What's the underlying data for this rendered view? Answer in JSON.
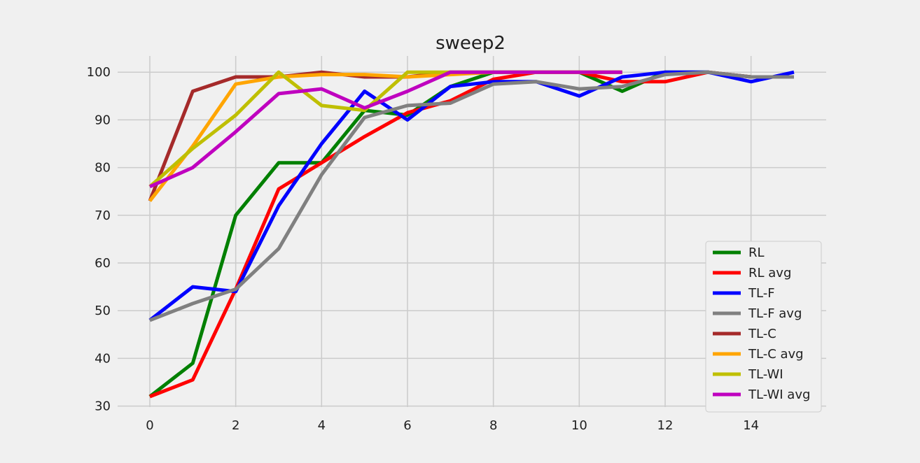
{
  "chart_data": {
    "type": "line",
    "title": "sweep2",
    "xlabel": "",
    "ylabel": "",
    "xlim": [
      -0.75,
      15.75
    ],
    "ylim": [
      29.8,
      103.4
    ],
    "x_ticks": [
      0,
      2,
      4,
      6,
      8,
      10,
      12,
      14
    ],
    "y_ticks": [
      30,
      40,
      50,
      60,
      70,
      80,
      90,
      100
    ],
    "grid": true,
    "legend_position": "lower-right",
    "series": [
      {
        "name": "RL",
        "color": "#008000",
        "x": [
          0,
          1,
          2,
          3,
          4,
          5,
          6,
          7,
          8,
          9,
          10,
          11,
          12,
          13,
          14,
          15
        ],
        "values": [
          32,
          39,
          70,
          81,
          81,
          92,
          91,
          97,
          100,
          100,
          100,
          96,
          100,
          100,
          99,
          99
        ]
      },
      {
        "name": "RL avg",
        "color": "#ff0000",
        "x": [
          0,
          1,
          2,
          3,
          4,
          5,
          6,
          7,
          8,
          9,
          10,
          11,
          12,
          13,
          14,
          15
        ],
        "values": [
          32,
          35.5,
          54.5,
          75.5,
          81,
          86.5,
          91.5,
          94,
          98.5,
          100,
          100,
          98,
          98,
          100,
          99,
          99
        ]
      },
      {
        "name": "TL-F",
        "color": "#0000ff",
        "x": [
          0,
          1,
          2,
          3,
          4,
          5,
          6,
          7,
          8,
          9,
          10,
          11,
          12,
          13,
          14,
          15
        ],
        "values": [
          48,
          55,
          54,
          72,
          85,
          96,
          90,
          97,
          98,
          98,
          95,
          99,
          100,
          100,
          98,
          100
        ]
      },
      {
        "name": "TL-F avg",
        "color": "#808080",
        "x": [
          0,
          1,
          2,
          3,
          4,
          5,
          6,
          7,
          8,
          9,
          10,
          11,
          12,
          13,
          14,
          15
        ],
        "values": [
          48,
          51.5,
          54.5,
          63,
          78.5,
          90.5,
          93,
          93.5,
          97.5,
          98,
          96.5,
          97,
          99.5,
          100,
          99,
          99
        ]
      },
      {
        "name": "TL-C",
        "color": "#a52a2a",
        "x": [
          0,
          1,
          2,
          3,
          4,
          5,
          6,
          7,
          8,
          9,
          10,
          11
        ],
        "values": [
          73,
          96,
          99,
          99,
          100,
          99,
          99,
          100,
          100,
          100,
          100,
          100
        ]
      },
      {
        "name": "TL-C avg",
        "color": "#ffa500",
        "x": [
          0,
          1,
          2,
          3,
          4,
          5,
          6,
          7,
          8,
          9,
          10,
          11
        ],
        "values": [
          73,
          84.5,
          97.5,
          99,
          99.5,
          99.5,
          99,
          99.5,
          100,
          100,
          100,
          100
        ]
      },
      {
        "name": "TL-WI",
        "color": "#bfbf00",
        "x": [
          0,
          1,
          2,
          3,
          4,
          5,
          6,
          7,
          8,
          9,
          10,
          11
        ],
        "values": [
          76,
          84,
          91,
          100,
          93,
          92,
          100,
          100,
          100,
          100,
          100,
          100
        ]
      },
      {
        "name": "TL-WI avg",
        "color": "#bf00bf",
        "x": [
          0,
          1,
          2,
          3,
          4,
          5,
          6,
          7,
          8,
          9,
          10,
          11
        ],
        "values": [
          76,
          80,
          87.5,
          95.5,
          96.5,
          92.5,
          96,
          100,
          100,
          100,
          100,
          100
        ]
      }
    ]
  }
}
